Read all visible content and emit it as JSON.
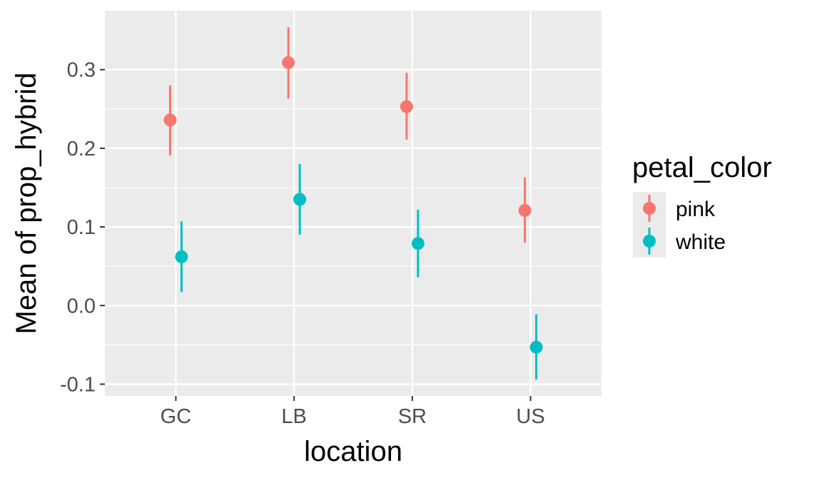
{
  "chart_data": {
    "type": "scatter",
    "subtype": "point-with-errorbars",
    "title": "",
    "xlabel": "location",
    "ylabel": "Mean of prop_hybrid",
    "categories": [
      "GC",
      "LB",
      "SR",
      "US"
    ],
    "ylim": [
      -0.115,
      0.375
    ],
    "yticks": [
      -0.1,
      0.0,
      0.1,
      0.2,
      0.3
    ],
    "ytick_labels": [
      "-0.1",
      "0.0",
      "0.1",
      "0.2",
      "0.3"
    ],
    "grid": true,
    "legend": {
      "title": "petal_color",
      "position": "right"
    },
    "series": [
      {
        "name": "pink",
        "color": "#F8766D",
        "values": [
          0.236,
          0.309,
          0.253,
          0.121
        ],
        "lower": [
          0.191,
          0.263,
          0.211,
          0.08
        ],
        "upper": [
          0.28,
          0.354,
          0.296,
          0.163
        ]
      },
      {
        "name": "white",
        "color": "#00BFC4",
        "values": [
          0.062,
          0.135,
          0.079,
          -0.053
        ],
        "lower": [
          0.017,
          0.09,
          0.036,
          -0.094
        ],
        "upper": [
          0.107,
          0.18,
          0.122,
          -0.011
        ]
      }
    ]
  }
}
